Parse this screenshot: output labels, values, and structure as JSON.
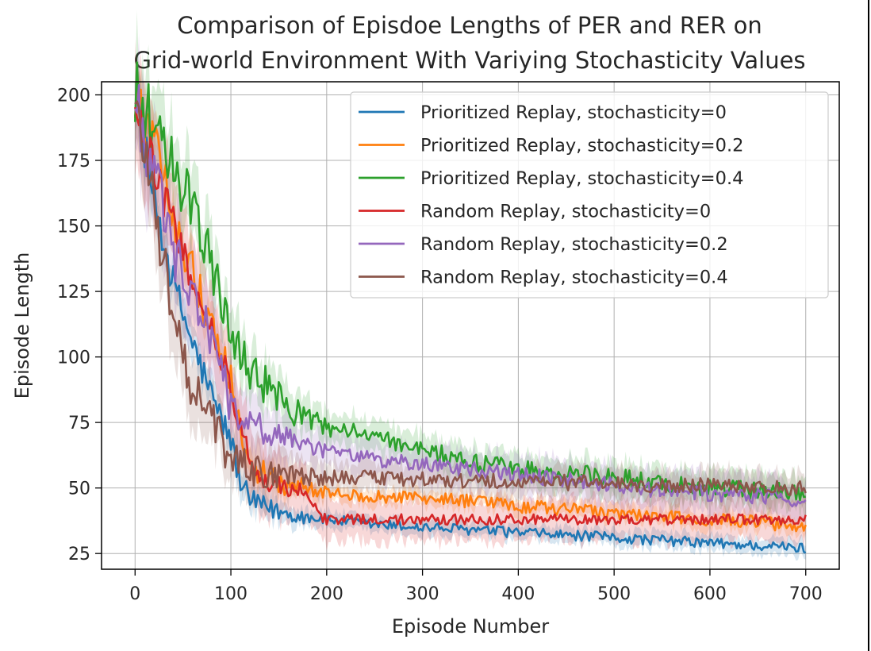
{
  "chart_data": {
    "type": "line",
    "title_lines": [
      "Comparison of Episdoe Lengths of PER and RER on",
      "Grid-world Environment With Variying Stochasticity Values"
    ],
    "xlabel": "Episode Number",
    "ylabel": "Episode Length",
    "xlim": [
      -35,
      735
    ],
    "ylim": [
      19,
      205
    ],
    "xticks": [
      0,
      100,
      200,
      300,
      400,
      500,
      600,
      700
    ],
    "yticks": [
      25,
      50,
      75,
      100,
      125,
      150,
      175,
      200
    ],
    "grid": true,
    "legend_position": "top-right",
    "series": [
      {
        "name": "Prioritized Replay, stochasticity=0",
        "color": "#1f77b4",
        "x": [
          0,
          20,
          40,
          60,
          80,
          100,
          110,
          120,
          140,
          160,
          200,
          250,
          300,
          350,
          400,
          450,
          500,
          550,
          600,
          650,
          700
        ],
        "y": [
          200,
          160,
          128,
          105,
          85,
          68,
          52,
          45,
          42,
          40,
          38,
          36,
          35,
          34,
          33,
          32,
          31,
          30,
          29,
          28,
          27
        ],
        "noise": 2.0,
        "band": 3
      },
      {
        "name": "Prioritized Replay, stochasticity=0.2",
        "color": "#ff7f0e",
        "x": [
          0,
          20,
          40,
          60,
          80,
          100,
          110,
          120,
          140,
          160,
          180,
          200,
          250,
          300,
          350,
          400,
          450,
          500,
          550,
          600,
          650,
          700
        ],
        "y": [
          200,
          180,
          155,
          132,
          112,
          92,
          70,
          58,
          54,
          51,
          50,
          48,
          47,
          46,
          45,
          43,
          42,
          40,
          39,
          38,
          37,
          35
        ],
        "noise": 2.5,
        "band": 3
      },
      {
        "name": "Prioritized Replay, stochasticity=0.4",
        "color": "#2ca02c",
        "x": [
          0,
          20,
          40,
          60,
          80,
          100,
          120,
          140,
          160,
          200,
          250,
          300,
          350,
          400,
          450,
          500,
          550,
          600,
          650,
          700
        ],
        "y": [
          200,
          188,
          172,
          158,
          135,
          105,
          95,
          88,
          80,
          73,
          70,
          65,
          60,
          57,
          56,
          54,
          52,
          50,
          49,
          48
        ],
        "noise": 3.5,
        "band": 6
      },
      {
        "name": "Random Replay, stochasticity=0",
        "color": "#d62728",
        "x": [
          0,
          20,
          40,
          60,
          80,
          100,
          120,
          140,
          160,
          180,
          190,
          200,
          250,
          300,
          350,
          400,
          450,
          500,
          550,
          600,
          650,
          700
        ],
        "y": [
          200,
          172,
          150,
          130,
          112,
          88,
          60,
          52,
          50,
          48,
          40,
          38,
          38,
          38,
          38,
          38,
          38,
          38,
          38,
          38,
          38,
          38
        ],
        "noise": 2.0,
        "band": 8
      },
      {
        "name": "Random Replay, stochasticity=0.2",
        "color": "#9467bd",
        "x": [
          0,
          20,
          40,
          60,
          80,
          100,
          120,
          140,
          160,
          200,
          250,
          300,
          350,
          400,
          450,
          500,
          550,
          600,
          650,
          700
        ],
        "y": [
          200,
          168,
          140,
          122,
          108,
          80,
          75,
          72,
          68,
          64,
          61,
          59,
          57,
          55,
          53,
          51,
          49,
          48,
          47,
          45
        ],
        "noise": 3.0,
        "band": 7
      },
      {
        "name": "Random Replay, stochasticity=0.4",
        "color": "#8c564b",
        "x": [
          0,
          20,
          40,
          60,
          80,
          100,
          120,
          140,
          160,
          200,
          250,
          300,
          350,
          400,
          450,
          500,
          550,
          600,
          650,
          700
        ],
        "y": [
          200,
          158,
          118,
          88,
          75,
          62,
          58,
          56,
          55,
          54,
          54,
          53,
          53,
          53,
          52,
          52,
          51,
          51,
          50,
          50
        ],
        "noise": 3.0,
        "band": 6
      }
    ]
  }
}
